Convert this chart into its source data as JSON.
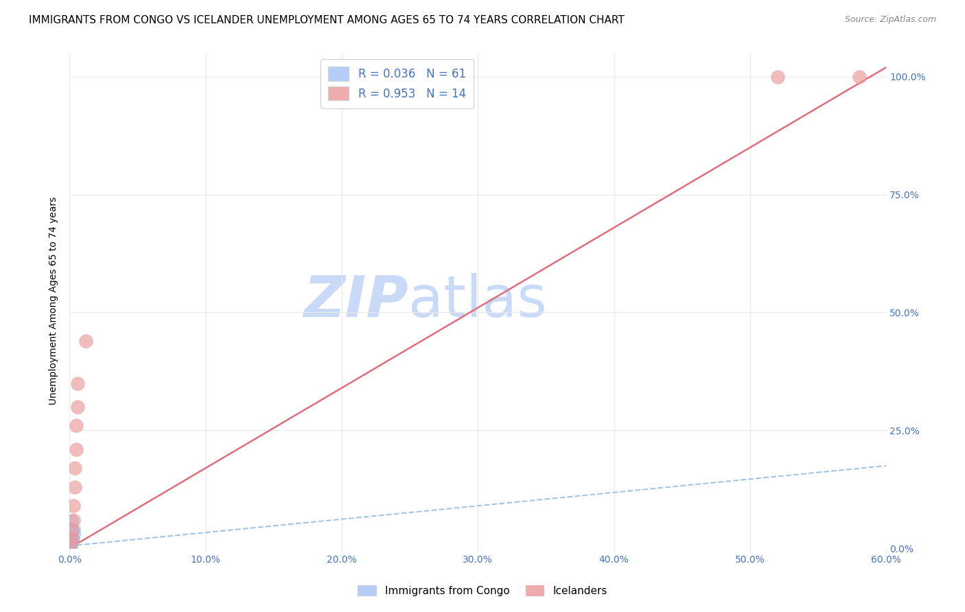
{
  "title": "IMMIGRANTS FROM CONGO VS ICELANDER UNEMPLOYMENT AMONG AGES 65 TO 74 YEARS CORRELATION CHART",
  "source": "Source: ZipAtlas.com",
  "ylabel": "Unemployment Among Ages 65 to 74 years",
  "xlim": [
    0.0,
    0.6
  ],
  "ylim": [
    0.0,
    1.05
  ],
  "yticks": [
    0.0,
    0.25,
    0.5,
    0.75,
    1.0
  ],
  "xticks": [
    0.0,
    0.1,
    0.2,
    0.3,
    0.4,
    0.5,
    0.6
  ],
  "ytick_labels": [
    "0.0%",
    "25.0%",
    "50.0%",
    "75.0%",
    "100.0%"
  ],
  "xtick_labels": [
    "0.0%",
    "10.0%",
    "20.0%",
    "30.0%",
    "40.0%",
    "50.0%",
    "60.0%"
  ],
  "blue_color": "#a4c2f4",
  "pink_color": "#ea9999",
  "blue_line_color": "#9fc5e8",
  "pink_line_color": "#e06c7a",
  "R_blue": 0.036,
  "N_blue": 61,
  "R_pink": 0.953,
  "N_pink": 14,
  "legend_label_blue": "Immigrants from Congo",
  "legend_label_pink": "Icelanders",
  "watermark_zip": "ZIP",
  "watermark_atlas": "atlas",
  "watermark_color": "#c9daf8",
  "tick_color": "#4472c4",
  "grid_color": "#e8e8e8",
  "title_fontsize": 11,
  "source_fontsize": 9,
  "ylabel_fontsize": 10,
  "legend_fontsize": 12,
  "watermark_fontsize_zip": 60,
  "watermark_fontsize_atlas": 60,
  "blue_scatter_x": [
    0.001,
    0.002,
    0.001,
    0.003,
    0.002,
    0.001,
    0.002,
    0.001,
    0.003,
    0.001,
    0.002,
    0.002,
    0.001,
    0.002,
    0.001,
    0.001,
    0.002,
    0.002,
    0.002,
    0.001,
    0.001,
    0.002,
    0.002,
    0.001,
    0.002,
    0.001,
    0.003,
    0.001,
    0.002,
    0.002,
    0.001,
    0.001,
    0.002,
    0.002,
    0.001,
    0.002,
    0.002,
    0.001,
    0.001,
    0.002,
    0.001,
    0.001,
    0.002,
    0.002,
    0.001,
    0.001,
    0.002,
    0.002,
    0.001,
    0.002,
    0.002,
    0.001,
    0.001,
    0.002,
    0.001,
    0.001,
    0.004,
    0.003,
    0.004,
    0.003,
    0.002
  ],
  "blue_scatter_y": [
    0.01,
    0.02,
    0.0,
    0.02,
    0.01,
    0.0,
    0.02,
    0.01,
    0.02,
    0.0,
    0.01,
    0.01,
    0.0,
    0.01,
    0.0,
    0.01,
    0.01,
    0.01,
    0.02,
    0.01,
    0.0,
    0.01,
    0.01,
    0.0,
    0.01,
    0.01,
    0.02,
    0.0,
    0.01,
    0.01,
    0.0,
    0.01,
    0.01,
    0.02,
    0.0,
    0.01,
    0.01,
    0.0,
    0.01,
    0.01,
    0.0,
    0.01,
    0.01,
    0.02,
    0.0,
    0.01,
    0.01,
    0.02,
    0.0,
    0.01,
    0.01,
    0.0,
    0.01,
    0.01,
    0.0,
    0.01,
    0.03,
    0.04,
    0.04,
    0.02,
    0.06
  ],
  "pink_scatter_x": [
    0.001,
    0.002,
    0.002,
    0.003,
    0.003,
    0.004,
    0.004,
    0.005,
    0.005,
    0.006,
    0.006,
    0.52,
    0.58,
    0.012
  ],
  "pink_scatter_y": [
    0.01,
    0.02,
    0.04,
    0.06,
    0.09,
    0.13,
    0.17,
    0.21,
    0.26,
    0.3,
    0.35,
    1.0,
    1.0,
    0.44
  ],
  "blue_trend_x": [
    0.0,
    0.6
  ],
  "blue_trend_y": [
    0.005,
    0.175
  ],
  "pink_trend_x": [
    0.0,
    0.6
  ],
  "pink_trend_y": [
    0.0,
    1.02
  ]
}
